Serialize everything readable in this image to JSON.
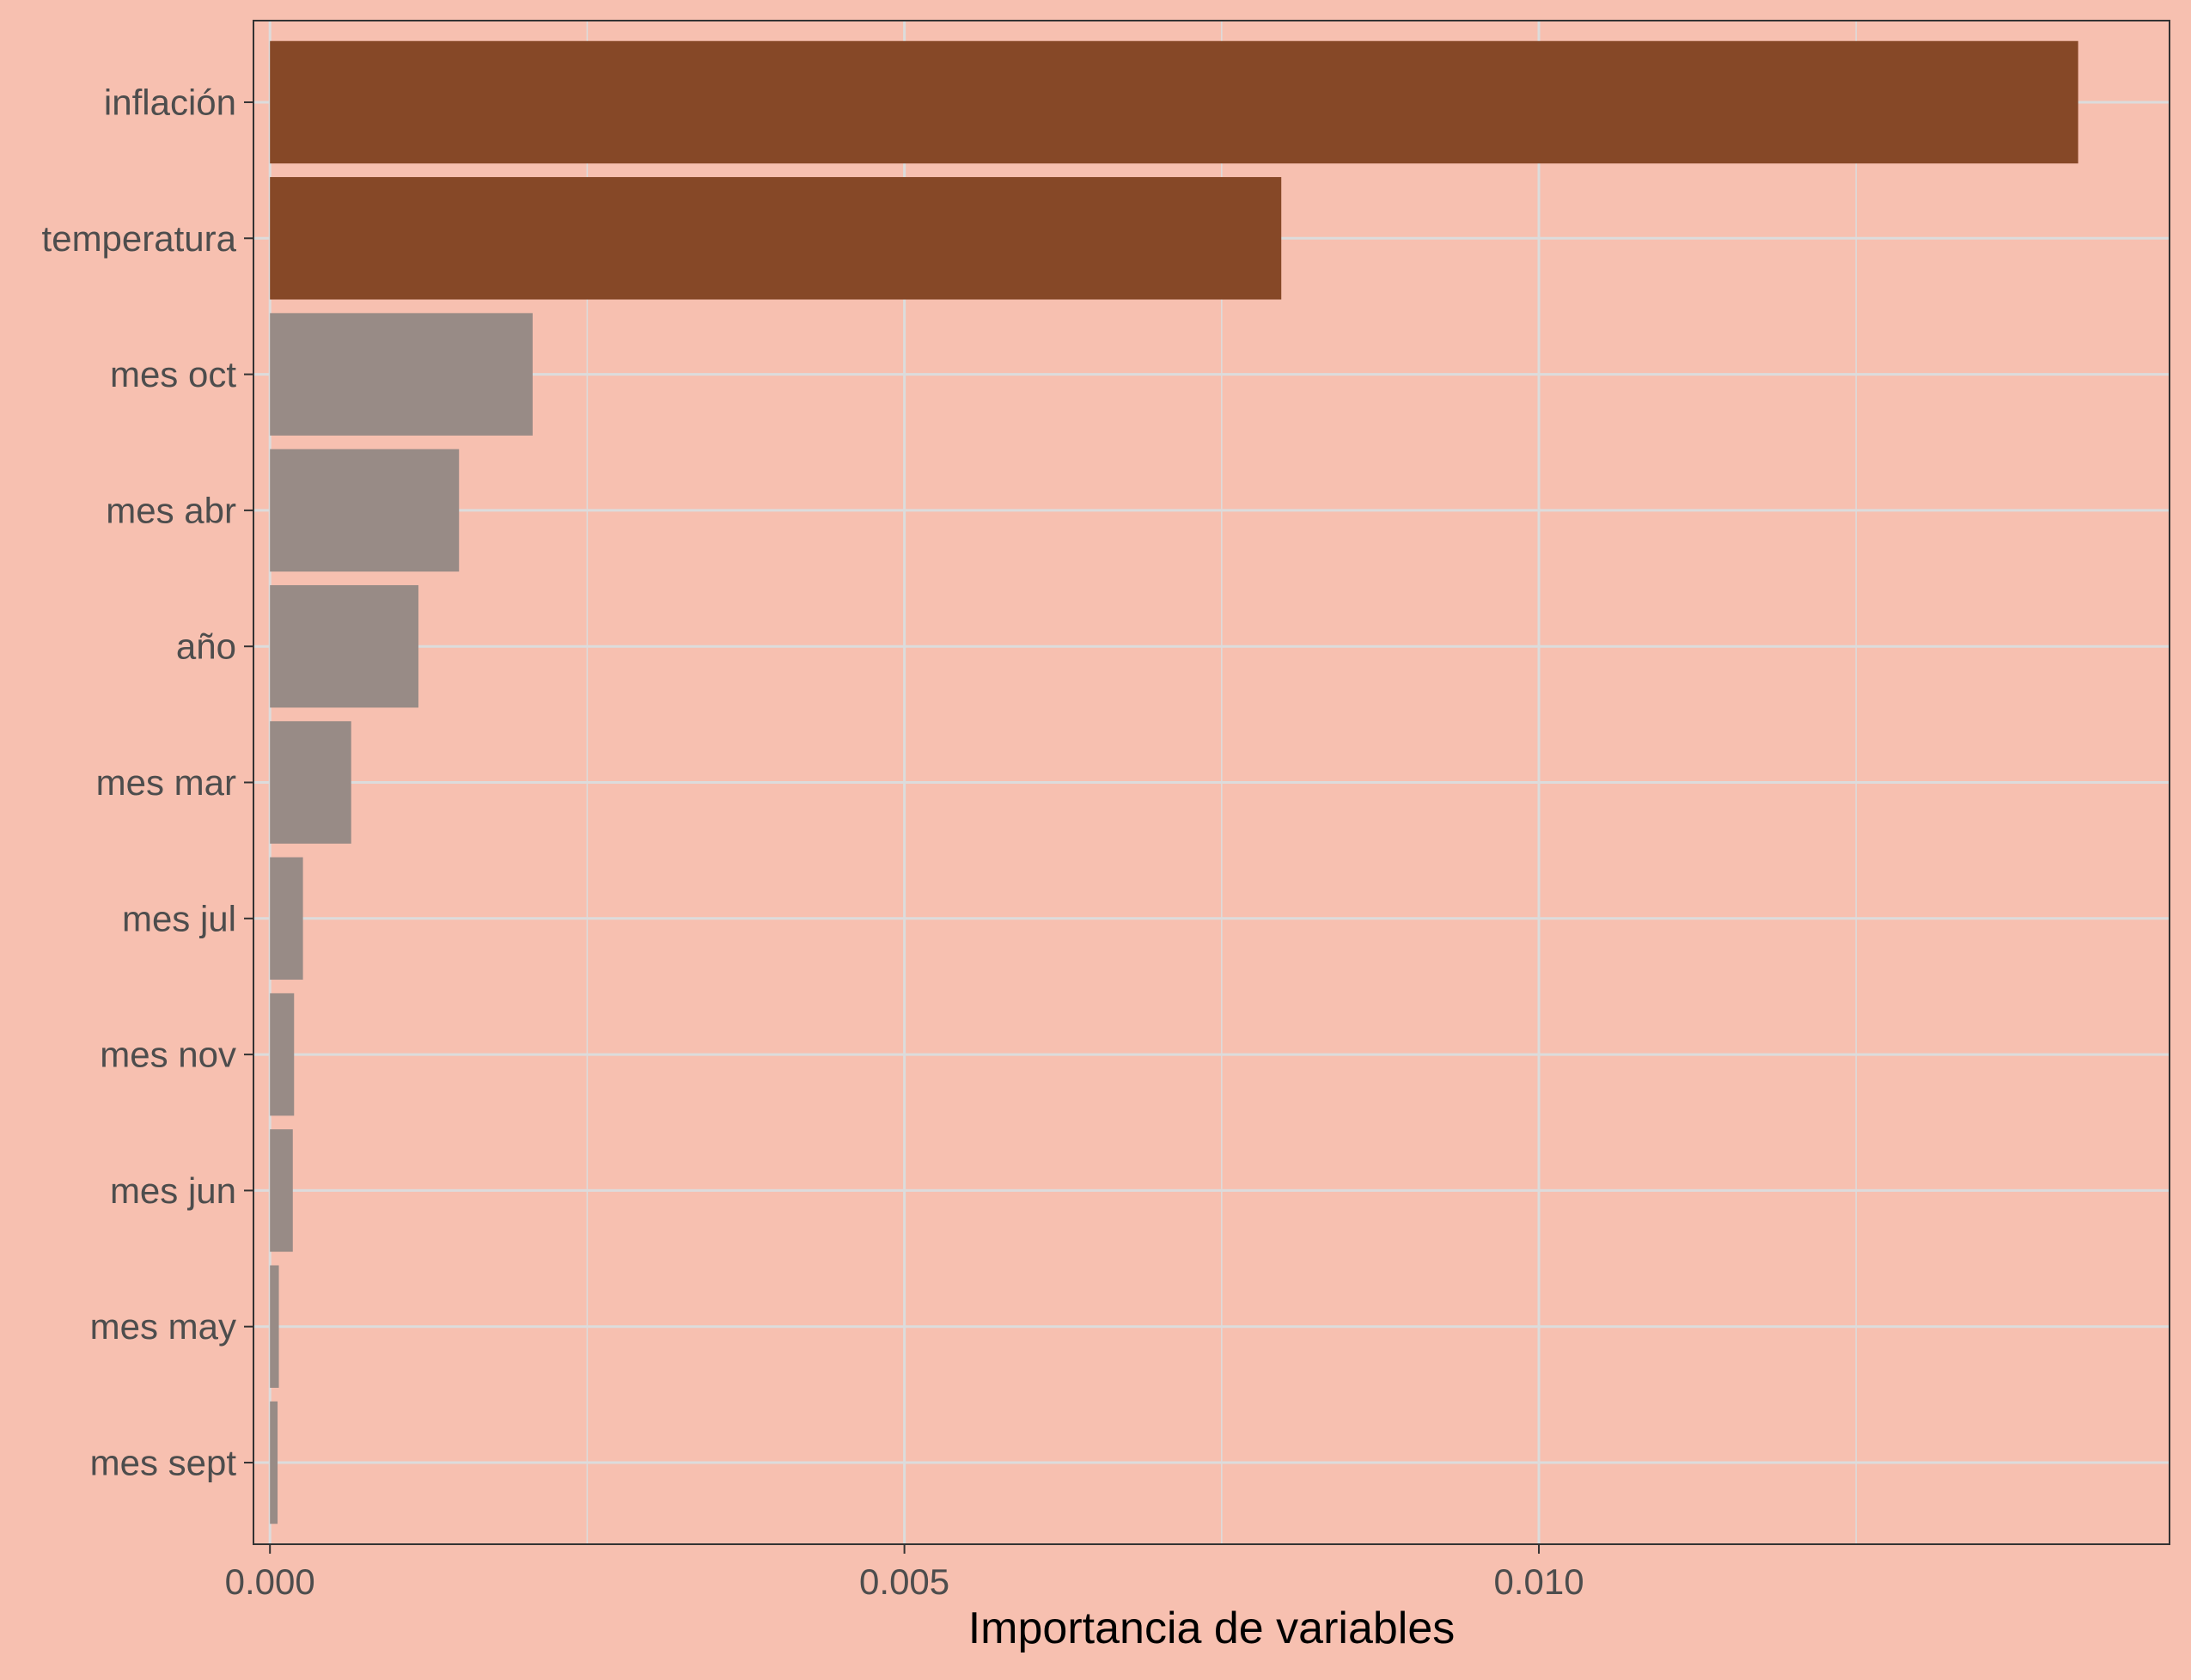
{
  "chart_data": {
    "type": "bar",
    "orientation": "horizontal",
    "categories": [
      "inflación",
      "temperatura",
      "mes oct",
      "mes abr",
      "año",
      "mes mar",
      "mes jul",
      "mes nov",
      "mes jun",
      "mes may",
      "mes sept"
    ],
    "values": [
      0.01425,
      0.00797,
      0.00207,
      0.00149,
      0.00117,
      0.00064,
      0.00026,
      0.00019,
      0.00018,
      7e-05,
      6e-05
    ],
    "highlight": [
      true,
      true,
      false,
      false,
      false,
      false,
      false,
      false,
      false,
      false,
      false
    ],
    "xlabel": "Importancia de variables",
    "ylabel": "",
    "xlim": [
      -0.00013,
      0.01497
    ],
    "xticks": [
      0.0,
      0.005,
      0.01
    ],
    "xtick_labels": [
      "0.000",
      "0.005",
      "0.010"
    ],
    "grid": true,
    "colors": {
      "background": "#f7c0b0",
      "highlight_bar": "#864827",
      "other_bar": "#988b86",
      "grid": "#dcdcdc",
      "axis": "#333333",
      "tick_text": "#4d4d4d",
      "title_text": "#000000"
    }
  }
}
